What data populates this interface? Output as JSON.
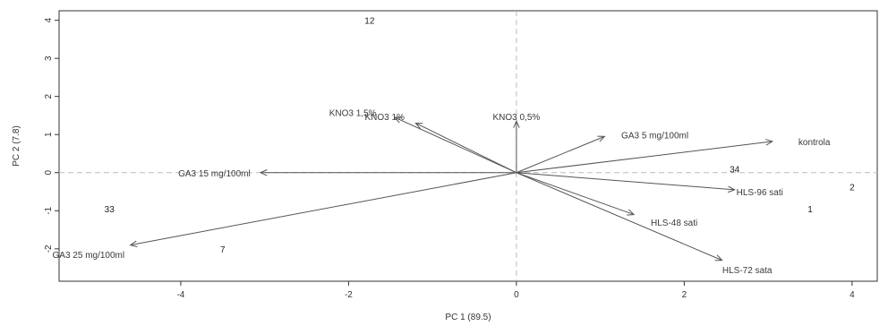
{
  "chart_data": {
    "type": "scatter",
    "subtype": "biplot",
    "xlabel": "PC 1 (89.5)",
    "ylabel": "PC 2 (7.8)",
    "xlim": [
      -5.45,
      4.3
    ],
    "ylim": [
      -2.85,
      4.25
    ],
    "xticks": [
      -4,
      -2,
      0,
      2,
      4
    ],
    "yticks": [
      -2,
      -1,
      0,
      1,
      2,
      3,
      4
    ],
    "xtick_labels": [
      "-4",
      "-2",
      "0",
      "2",
      "4"
    ],
    "ytick_labels": [
      "-2",
      "-1",
      "0",
      "1",
      "2",
      "3",
      "4"
    ],
    "reference_lines": {
      "x": 0,
      "y": 0,
      "style": "dashed",
      "color": "#bbbbbb"
    },
    "observations": [
      {
        "label": "12",
        "x": -1.75,
        "y": 4.0
      },
      {
        "label": "33",
        "x": -4.85,
        "y": -0.95
      },
      {
        "label": "7",
        "x": -3.5,
        "y": -2.0
      },
      {
        "label": "34",
        "x": 2.6,
        "y": 0.1
      },
      {
        "label": "2",
        "x": 4.0,
        "y": -0.37
      },
      {
        "label": "1",
        "x": 3.5,
        "y": -0.95
      }
    ],
    "loadings": [
      {
        "label": "KNO3 1,5%",
        "x": -1.45,
        "y": 1.45,
        "label_x": -1.95,
        "label_y": 1.58
      },
      {
        "label": "KNO3 1%",
        "x": -1.2,
        "y": 1.3,
        "label_x": -1.57,
        "label_y": 1.48
      },
      {
        "label": "KNO3 0,5%",
        "x": 0.0,
        "y": 1.35,
        "label_x": 0.0,
        "label_y": 1.48
      },
      {
        "label": "GA3 5 mg/100ml",
        "x": 1.05,
        "y": 0.95,
        "label_x": 1.65,
        "label_y": 0.99
      },
      {
        "label": "kontrola",
        "x": 3.05,
        "y": 0.82,
        "label_x": 3.55,
        "label_y": 0.82
      },
      {
        "label": "GA3 15 mg/100ml",
        "x": -3.05,
        "y": 0.0,
        "label_x": -3.6,
        "label_y": 0.0
      },
      {
        "label": "GA3 25 mg/100ml",
        "x": -4.6,
        "y": -1.9,
        "label_x": -5.1,
        "label_y": -2.15
      },
      {
        "label": "HLS-96 sati",
        "x": 2.6,
        "y": -0.45,
        "label_x": 2.9,
        "label_y": -0.5
      },
      {
        "label": "HLS-48 sati",
        "x": 1.4,
        "y": -1.1,
        "label_x": 1.88,
        "label_y": -1.3
      },
      {
        "label": "HLS-72 sata",
        "x": 2.45,
        "y": -2.3,
        "label_x": 2.75,
        "label_y": -2.55
      }
    ],
    "colors": {
      "arrow": "#555555",
      "axis": "#333333",
      "reference": "#bbbbbb"
    }
  }
}
